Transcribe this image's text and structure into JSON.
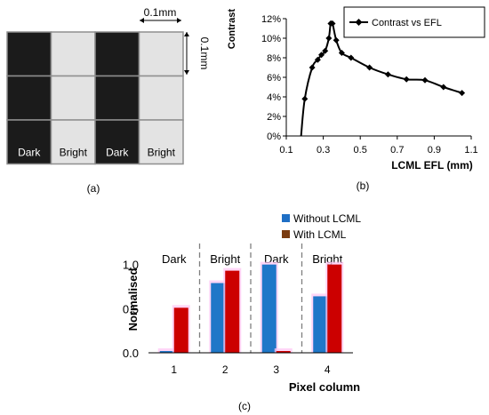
{
  "panel_a": {
    "caption": "(a)",
    "h_dim": "0.1mm",
    "v_dim": "0.1mm",
    "labels": [
      "Dark",
      "Bright",
      "Dark",
      "Bright"
    ],
    "colors": {
      "dark": "#1b1b1b",
      "bright": "#e3e3e3",
      "grid": "#8f8f8f"
    }
  },
  "chart_data": [
    {
      "id": "b",
      "type": "line",
      "caption": "(b)",
      "ylabel": "Contrast",
      "xlabel": "LCML EFL (mm)",
      "legend": "Contrast vs EFL",
      "legend_position": "top-right",
      "xlim": [
        0.1,
        1.1
      ],
      "ylim": [
        0,
        0.12
      ],
      "xticks": [
        "0.1",
        "0.3",
        "0.5",
        "0.7",
        "0.9",
        "1.1"
      ],
      "yticks": [
        "0%",
        "2%",
        "4%",
        "6%",
        "8%",
        "10%",
        "12%"
      ],
      "curve_start": [
        0.18,
        0
      ],
      "x": [
        0.2,
        0.24,
        0.27,
        0.29,
        0.31,
        0.33,
        0.34,
        0.35,
        0.37,
        0.4,
        0.45,
        0.55,
        0.65,
        0.75,
        0.85,
        0.95,
        1.05
      ],
      "y": [
        0.038,
        0.07,
        0.078,
        0.083,
        0.087,
        0.1,
        0.115,
        0.115,
        0.098,
        0.085,
        0.08,
        0.07,
        0.063,
        0.058,
        0.057,
        0.05,
        0.044
      ],
      "color": "#000000"
    },
    {
      "id": "c",
      "type": "bar",
      "caption": "(c)",
      "ylabel": "Normalised",
      "xlabel": "Pixel column",
      "categories": [
        "1",
        "2",
        "3",
        "4"
      ],
      "section_labels": [
        "Dark",
        "Bright",
        "Dark",
        "Bright"
      ],
      "yticks": [
        "0.0",
        "0.5",
        "1.0"
      ],
      "ylim": [
        0,
        1.5
      ],
      "legend_position": "top-right",
      "series": [
        {
          "name": "Without LCML",
          "color": "#1f77c8",
          "values": [
            0.02,
            0.79,
            1.0,
            0.64
          ]
        },
        {
          "name": "With LCML",
          "color": "#cc0000",
          "values": [
            0.51,
            0.93,
            0.02,
            1.0
          ]
        }
      ],
      "legend_swatch_colors": [
        "#1f6fc5",
        "#7a3b10"
      ],
      "halo_color": "#ffc8f4"
    }
  ]
}
